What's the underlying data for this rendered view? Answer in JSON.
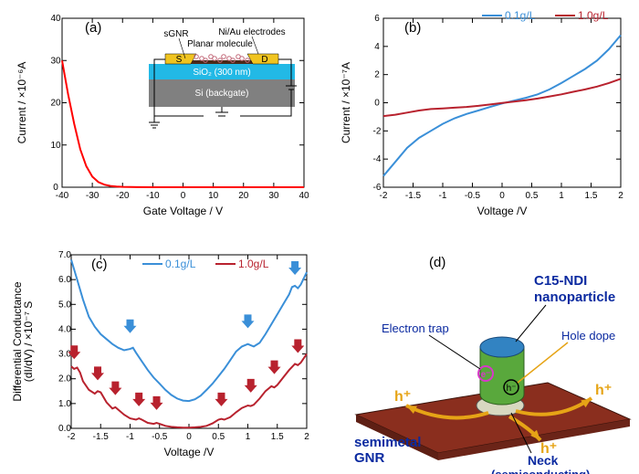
{
  "panel_a": {
    "label": "(a)",
    "type": "line",
    "color": "#ff0000",
    "xlabel": "Gate Voltage / V",
    "ylabel": "Current / ×10⁻⁶A",
    "xlim": [
      -40,
      40
    ],
    "xtick_step": 10,
    "ylim": [
      0,
      40
    ],
    "ytick_step": 10,
    "data": [
      [
        -40,
        30
      ],
      [
        -38,
        22
      ],
      [
        -36,
        15
      ],
      [
        -34,
        9
      ],
      [
        -32,
        5
      ],
      [
        -30,
        2.5
      ],
      [
        -28,
        1.2
      ],
      [
        -26,
        0.6
      ],
      [
        -24,
        0.3
      ],
      [
        -22,
        0.15
      ],
      [
        -20,
        0.08
      ],
      [
        -15,
        0.02
      ],
      [
        -10,
        0.01
      ],
      [
        0,
        0.005
      ],
      [
        20,
        0.003
      ],
      [
        40,
        0.002
      ]
    ],
    "inset": {
      "labels": {
        "sgnr": "sGNR",
        "electrodes": "Ni/Au electrodes",
        "planar": "Planar molecule",
        "s": "S",
        "d": "D",
        "sio2": "SiO₂ (300 nm)",
        "si": "Si (backgate)"
      },
      "colors": {
        "electrode": "#f0c420",
        "sio2": "#22b9e6",
        "si": "#808080",
        "gnr": "#4a2a1a"
      }
    }
  },
  "panel_b": {
    "label": "(b)",
    "type": "line",
    "xlabel": "Voltage /V",
    "ylabel": "Current / ×10⁻⁷A",
    "xlim": [
      -2,
      2
    ],
    "xtick_step": 0.5,
    "ylim": [
      -6,
      6
    ],
    "ytick_step": 2,
    "series": [
      {
        "name": "0.1g/L",
        "color": "#3a8fd8",
        "data": [
          [
            -2,
            -5.2
          ],
          [
            -1.8,
            -4.2
          ],
          [
            -1.6,
            -3.2
          ],
          [
            -1.4,
            -2.5
          ],
          [
            -1.2,
            -2.0
          ],
          [
            -1.0,
            -1.5
          ],
          [
            -0.8,
            -1.1
          ],
          [
            -0.6,
            -0.8
          ],
          [
            -0.4,
            -0.55
          ],
          [
            -0.2,
            -0.3
          ],
          [
            0,
            -0.05
          ],
          [
            0.2,
            0.15
          ],
          [
            0.4,
            0.35
          ],
          [
            0.6,
            0.6
          ],
          [
            0.8,
            0.95
          ],
          [
            1.0,
            1.4
          ],
          [
            1.2,
            1.9
          ],
          [
            1.4,
            2.4
          ],
          [
            1.6,
            3.0
          ],
          [
            1.8,
            3.8
          ],
          [
            2,
            4.8
          ]
        ]
      },
      {
        "name": "1.0g/L",
        "color": "#b8222e",
        "data": [
          [
            -2,
            -0.95
          ],
          [
            -1.8,
            -0.85
          ],
          [
            -1.6,
            -0.7
          ],
          [
            -1.4,
            -0.55
          ],
          [
            -1.2,
            -0.45
          ],
          [
            -1.0,
            -0.4
          ],
          [
            -0.8,
            -0.35
          ],
          [
            -0.6,
            -0.3
          ],
          [
            -0.4,
            -0.22
          ],
          [
            -0.2,
            -0.12
          ],
          [
            0,
            -0.02
          ],
          [
            0.2,
            0.08
          ],
          [
            0.4,
            0.18
          ],
          [
            0.6,
            0.3
          ],
          [
            0.8,
            0.45
          ],
          [
            1.0,
            0.6
          ],
          [
            1.2,
            0.78
          ],
          [
            1.4,
            0.95
          ],
          [
            1.6,
            1.15
          ],
          [
            1.8,
            1.4
          ],
          [
            2,
            1.7
          ]
        ]
      }
    ]
  },
  "panel_c": {
    "label": "(c)",
    "type": "line",
    "xlabel": "Voltage /V",
    "ylabel": "Differential Conductance\n(dI/dV) / ×10⁻⁷ S",
    "xlim": [
      -2,
      2
    ],
    "xtick_step": 0.5,
    "ylim": [
      0,
      7
    ],
    "ytick_step": 1,
    "yformat": 1,
    "series": [
      {
        "name": "0.1g/L",
        "color": "#3a8fd8",
        "data": [
          [
            -2,
            6.8
          ],
          [
            -1.9,
            6.0
          ],
          [
            -1.8,
            5.2
          ],
          [
            -1.7,
            4.5
          ],
          [
            -1.6,
            4.1
          ],
          [
            -1.5,
            3.8
          ],
          [
            -1.4,
            3.6
          ],
          [
            -1.3,
            3.4
          ],
          [
            -1.2,
            3.25
          ],
          [
            -1.1,
            3.15
          ],
          [
            -1.0,
            3.2
          ],
          [
            -0.95,
            3.25
          ],
          [
            -0.9,
            3.05
          ],
          [
            -0.8,
            2.7
          ],
          [
            -0.7,
            2.35
          ],
          [
            -0.6,
            2.05
          ],
          [
            -0.5,
            1.8
          ],
          [
            -0.4,
            1.55
          ],
          [
            -0.3,
            1.35
          ],
          [
            -0.2,
            1.2
          ],
          [
            -0.1,
            1.12
          ],
          [
            0,
            1.1
          ],
          [
            0.1,
            1.17
          ],
          [
            0.2,
            1.32
          ],
          [
            0.3,
            1.55
          ],
          [
            0.4,
            1.8
          ],
          [
            0.5,
            2.1
          ],
          [
            0.6,
            2.4
          ],
          [
            0.7,
            2.75
          ],
          [
            0.8,
            3.1
          ],
          [
            0.9,
            3.3
          ],
          [
            1.0,
            3.4
          ],
          [
            1.05,
            3.35
          ],
          [
            1.1,
            3.3
          ],
          [
            1.2,
            3.45
          ],
          [
            1.3,
            3.8
          ],
          [
            1.4,
            4.2
          ],
          [
            1.5,
            4.6
          ],
          [
            1.6,
            5.0
          ],
          [
            1.7,
            5.4
          ],
          [
            1.75,
            5.7
          ],
          [
            1.8,
            5.75
          ],
          [
            1.85,
            5.65
          ],
          [
            1.9,
            5.8
          ],
          [
            2,
            6.3
          ]
        ]
      },
      {
        "name": "1.0g/L",
        "color": "#b8222e",
        "data": [
          [
            -2,
            2.5
          ],
          [
            -1.95,
            2.4
          ],
          [
            -1.9,
            2.45
          ],
          [
            -1.85,
            2.25
          ],
          [
            -1.8,
            1.9
          ],
          [
            -1.7,
            1.55
          ],
          [
            -1.6,
            1.4
          ],
          [
            -1.55,
            1.5
          ],
          [
            -1.5,
            1.45
          ],
          [
            -1.4,
            1.05
          ],
          [
            -1.3,
            0.8
          ],
          [
            -1.25,
            0.85
          ],
          [
            -1.2,
            0.75
          ],
          [
            -1.1,
            0.55
          ],
          [
            -1.0,
            0.4
          ],
          [
            -0.9,
            0.35
          ],
          [
            -0.85,
            0.4
          ],
          [
            -0.8,
            0.35
          ],
          [
            -0.7,
            0.22
          ],
          [
            -0.6,
            0.18
          ],
          [
            -0.55,
            0.22
          ],
          [
            -0.5,
            0.18
          ],
          [
            -0.4,
            0.1
          ],
          [
            -0.3,
            0.06
          ],
          [
            -0.2,
            0.04
          ],
          [
            -0.1,
            0.03
          ],
          [
            0,
            0.03
          ],
          [
            0.1,
            0.04
          ],
          [
            0.2,
            0.06
          ],
          [
            0.3,
            0.1
          ],
          [
            0.4,
            0.2
          ],
          [
            0.5,
            0.35
          ],
          [
            0.55,
            0.38
          ],
          [
            0.6,
            0.35
          ],
          [
            0.7,
            0.45
          ],
          [
            0.8,
            0.65
          ],
          [
            0.9,
            0.82
          ],
          [
            1.0,
            0.92
          ],
          [
            1.05,
            0.9
          ],
          [
            1.1,
            0.95
          ],
          [
            1.2,
            1.2
          ],
          [
            1.3,
            1.5
          ],
          [
            1.4,
            1.7
          ],
          [
            1.45,
            1.65
          ],
          [
            1.5,
            1.75
          ],
          [
            1.6,
            2.05
          ],
          [
            1.7,
            2.35
          ],
          [
            1.8,
            2.6
          ],
          [
            1.85,
            2.55
          ],
          [
            1.9,
            2.65
          ],
          [
            2,
            3.0
          ]
        ]
      }
    ],
    "arrows": {
      "blue": {
        "color": "#3a8fd8",
        "positions": [
          [
            -1.0,
            3.95
          ],
          [
            1.0,
            4.15
          ],
          [
            1.8,
            6.3
          ]
        ]
      },
      "red": {
        "color": "#b8222e",
        "positions": [
          [
            -1.95,
            2.9
          ],
          [
            -1.55,
            2.05
          ],
          [
            -1.25,
            1.45
          ],
          [
            -0.85,
            1.0
          ],
          [
            -0.55,
            0.85
          ],
          [
            0.55,
            1.0
          ],
          [
            1.05,
            1.55
          ],
          [
            1.45,
            2.3
          ],
          [
            1.85,
            3.15
          ]
        ]
      }
    }
  },
  "panel_d": {
    "label": "(d)",
    "labels": {
      "nanoparticle": "C15-NDI\nnanoparticle",
      "trap": "Electron trap",
      "holedope": "Hole dope",
      "gnr": "semimetal\nGNR",
      "neck": "Neck\n(semiconducting)",
      "h": "h⁺"
    },
    "colors": {
      "gnr": "#8a2e1e",
      "nano_side": "#59a83c",
      "nano_top": "#3283c2",
      "neck": "#d8d8c0",
      "arrow": "#e6a416",
      "magenta": "#d838c8",
      "text": "#0b2aa0"
    }
  }
}
